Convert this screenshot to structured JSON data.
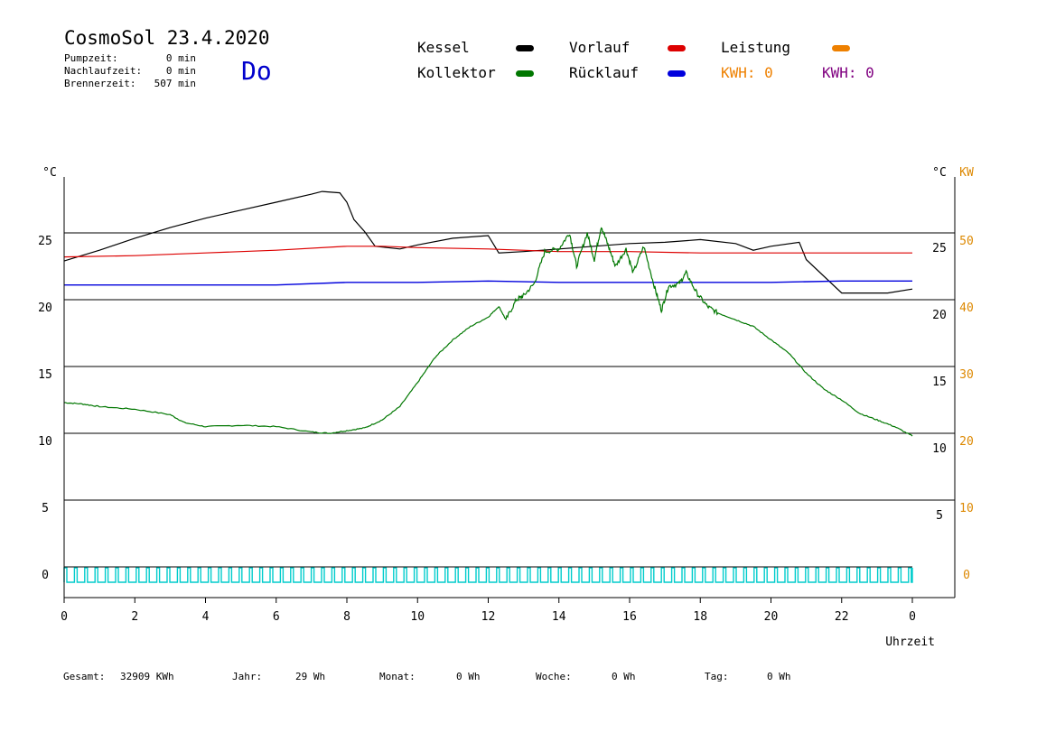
{
  "header": {
    "title": "CosmoSol 23.4.2020",
    "pumpzeit_label": "Pumpzeit:",
    "pumpzeit_value": "0 min",
    "nachlaufzeit_label": "Nachlaufzeit:",
    "nachlaufzeit_value": "0 min",
    "brennerzeit_label": "Brennerzeit:",
    "brennerzeit_value": "507 min",
    "weekday": "Do"
  },
  "legend": {
    "kessel": "Kessel",
    "kollektor": "Kollektor",
    "vorlauf": "Vorlauf",
    "ruecklauf": "Rücklauf",
    "leistung": "Leistung",
    "kwh_orange": "KWH: 0",
    "kwh_purple": "KWH: 0"
  },
  "colors": {
    "kessel": "#000000",
    "kollektor": "#007700",
    "vorlauf": "#dd0000",
    "ruecklauf": "#0000dd",
    "leistung": "#ee8000",
    "kwh_purple": "#800080",
    "pump_pulses": "#00cccc",
    "kw_axis": "#dd8800"
  },
  "footer": {
    "gesamt_label": "Gesamt:",
    "gesamt_value": "32909 KWh",
    "jahr_label": "Jahr:",
    "jahr_value": "29 Wh",
    "monat_label": "Monat:",
    "monat_value": "0 Wh",
    "woche_label": "Woche:",
    "woche_value": "0 Wh",
    "tag_label": "Tag:",
    "tag_value": "0 Wh"
  },
  "chart_data": {
    "type": "line",
    "xlabel": "Uhrzeit",
    "ylabel_left": "°C",
    "ylabel_right": "°C",
    "ylabel_right2": "KW",
    "xlim": [
      0,
      24
    ],
    "ylim": [
      0,
      30
    ],
    "ylim_kw": [
      0,
      60
    ],
    "x_ticks": [
      "0",
      "2",
      "4",
      "6",
      "8",
      "10",
      "12",
      "14",
      "16",
      "18",
      "20",
      "22",
      "0"
    ],
    "y_ticks_left": [
      "0",
      "5",
      "10",
      "15",
      "20",
      "25"
    ],
    "y_ticks_right": [
      "5",
      "10",
      "15",
      "20",
      "25"
    ],
    "y_ticks_kw": [
      "0",
      "10",
      "20",
      "30",
      "40",
      "50",
      "KW"
    ],
    "grid": true,
    "series": [
      {
        "name": "Kessel",
        "x": [
          0,
          1,
          2,
          3,
          4,
          5,
          6,
          7,
          7.3,
          7.8,
          8.0,
          8.2,
          8.5,
          8.8,
          9.5,
          10,
          11,
          12,
          12.3,
          13,
          14,
          15,
          16,
          17,
          18,
          19,
          19.5,
          20,
          20.8,
          21.0,
          22,
          23,
          23.3,
          24
        ],
        "y": [
          22.9,
          23.7,
          24.6,
          25.4,
          26.1,
          26.7,
          27.3,
          27.9,
          28.1,
          28.0,
          27.3,
          26.0,
          25.1,
          24.0,
          23.8,
          24.1,
          24.6,
          24.8,
          23.5,
          23.6,
          23.8,
          24.0,
          24.2,
          24.3,
          24.5,
          24.2,
          23.7,
          24.0,
          24.3,
          23.0,
          20.5,
          20.5,
          20.5,
          20.8
        ]
      },
      {
        "name": "Vorlauf",
        "x": [
          0,
          2,
          4,
          6,
          8,
          9,
          10,
          12,
          14,
          16,
          18,
          20,
          22,
          23,
          24
        ],
        "y": [
          23.2,
          23.3,
          23.5,
          23.7,
          24.0,
          24.0,
          23.9,
          23.8,
          23.6,
          23.6,
          23.5,
          23.5,
          23.5,
          23.5,
          23.5
        ]
      },
      {
        "name": "Rücklauf",
        "x": [
          0,
          2,
          4,
          6,
          8,
          10,
          12,
          14,
          16,
          18,
          20,
          22,
          24
        ],
        "y": [
          21.1,
          21.1,
          21.1,
          21.1,
          21.3,
          21.3,
          21.4,
          21.3,
          21.3,
          21.3,
          21.3,
          21.4,
          21.4
        ]
      },
      {
        "name": "Kollektor",
        "x": [
          0,
          0.5,
          1,
          2,
          3,
          3.4,
          4,
          5,
          6,
          7,
          7.5,
          8,
          8.5,
          9,
          9.5,
          10,
          10.5,
          11,
          11.5,
          12,
          12.3,
          12.5,
          12.8,
          13.0,
          13.3,
          13.6,
          14.0,
          14.3,
          14.5,
          14.8,
          15.0,
          15.2,
          15.4,
          15.6,
          15.9,
          16.1,
          16.4,
          16.7,
          16.9,
          17.1,
          17.4,
          17.6,
          17.9,
          18.2,
          18.5,
          19,
          19.5,
          20,
          20.5,
          21,
          21.5,
          22,
          22.5,
          23,
          23.5,
          24
        ],
        "y": [
          12.3,
          12.2,
          12.0,
          11.8,
          11.4,
          10.8,
          10.5,
          10.6,
          10.5,
          10.1,
          10.0,
          10.2,
          10.4,
          11.0,
          12.0,
          13.8,
          15.7,
          17.0,
          18.0,
          18.7,
          19.5,
          18.5,
          20.0,
          20.3,
          21.2,
          23.6,
          23.8,
          25.0,
          22.5,
          25.0,
          23.0,
          25.5,
          24.0,
          22.5,
          23.8,
          22.0,
          24.0,
          21.0,
          19.2,
          21.0,
          21.2,
          22.0,
          20.5,
          19.5,
          19.0,
          18.5,
          18.0,
          17.0,
          16.0,
          14.5,
          13.3,
          12.5,
          11.5,
          11.0,
          10.5,
          9.8
        ]
      }
    ]
  }
}
